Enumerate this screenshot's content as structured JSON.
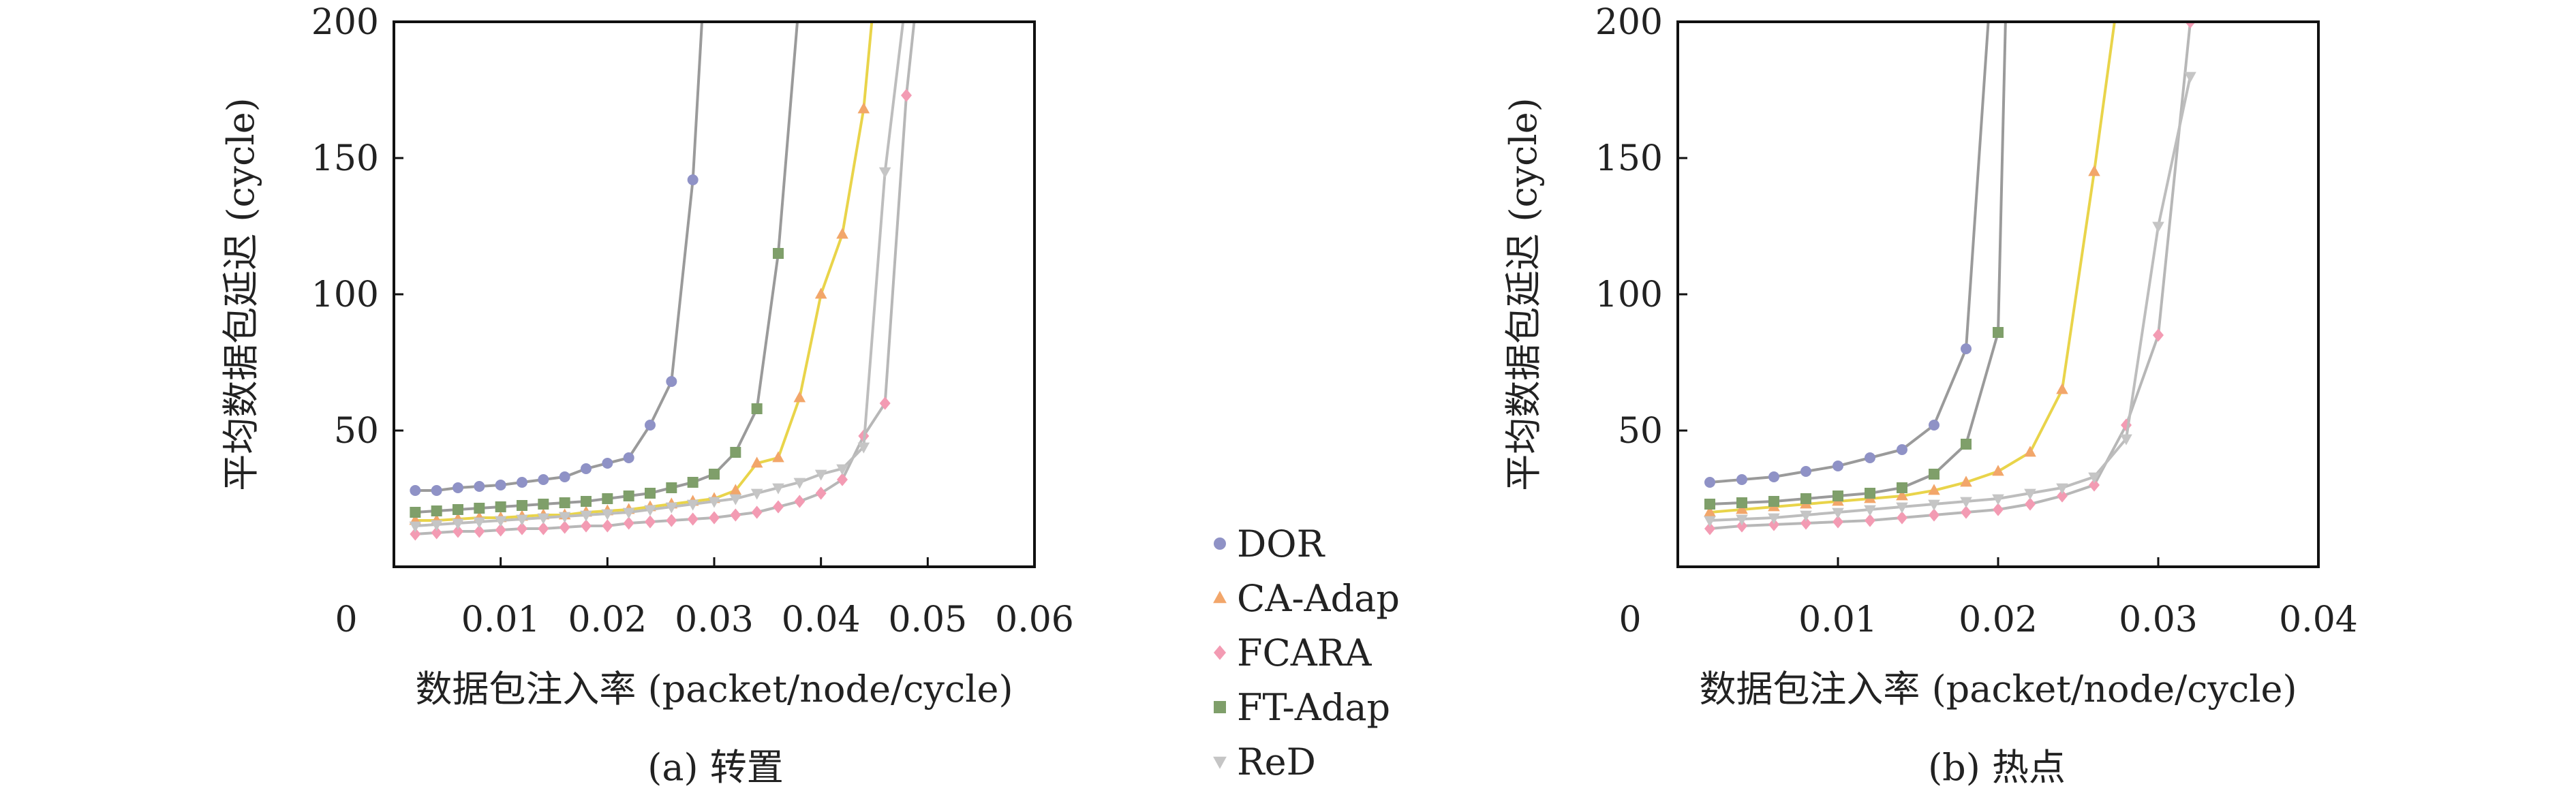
{
  "chart_data": [
    {
      "type": "line",
      "title": "(a) 转置",
      "xlabel": "数据包注入率 (packet/node/cycle)",
      "ylabel": "平均数据包延迟 (cycle)",
      "xlim": [
        0,
        0.06
      ],
      "ylim": [
        0,
        200
      ],
      "xticks": [
        0,
        0.01,
        0.02,
        0.03,
        0.04,
        0.05,
        0.06
      ],
      "xtick_labels": [
        "0",
        "0.01",
        "0.02",
        "0.03",
        "0.04",
        "0.05",
        "0.06"
      ],
      "yticks": [
        50,
        100,
        150,
        200
      ],
      "ytick_labels": [
        "50",
        "100",
        "150",
        "200"
      ],
      "series": [
        {
          "name": "DOR",
          "x": [
            0.002,
            0.004,
            0.006,
            0.008,
            0.01,
            0.012,
            0.014,
            0.016,
            0.018,
            0.02,
            0.022,
            0.024,
            0.026,
            0.028,
            0.029
          ],
          "y": [
            28,
            28,
            29,
            29.5,
            30,
            31,
            32,
            33,
            36,
            38,
            40,
            52,
            68,
            142,
            210
          ]
        },
        {
          "name": "CA-Adap",
          "x": [
            0.002,
            0.004,
            0.006,
            0.008,
            0.01,
            0.012,
            0.014,
            0.016,
            0.018,
            0.02,
            0.022,
            0.024,
            0.026,
            0.028,
            0.03,
            0.032,
            0.034,
            0.036,
            0.038,
            0.04,
            0.042,
            0.044,
            0.045
          ],
          "y": [
            17,
            17,
            17.5,
            18,
            18,
            18.5,
            19,
            19,
            20,
            20.5,
            21,
            22,
            23,
            24,
            25,
            28,
            38,
            40,
            62,
            100,
            122,
            168,
            210
          ]
        },
        {
          "name": "FCARA",
          "x": [
            0.002,
            0.004,
            0.006,
            0.008,
            0.01,
            0.012,
            0.014,
            0.016,
            0.018,
            0.02,
            0.022,
            0.024,
            0.026,
            0.028,
            0.03,
            0.032,
            0.034,
            0.036,
            0.038,
            0.04,
            0.042,
            0.044,
            0.046,
            0.048,
            0.049
          ],
          "y": [
            12,
            12.5,
            13,
            13,
            13.5,
            14,
            14,
            14.5,
            15,
            15,
            16,
            16.5,
            17,
            17.5,
            18,
            19,
            20,
            22,
            24,
            27,
            32,
            48,
            60,
            173,
            210
          ]
        },
        {
          "name": "FT-Adap",
          "x": [
            0.002,
            0.004,
            0.006,
            0.008,
            0.01,
            0.012,
            0.014,
            0.016,
            0.018,
            0.02,
            0.022,
            0.024,
            0.026,
            0.028,
            0.03,
            0.032,
            0.034,
            0.036,
            0.038
          ],
          "y": [
            20,
            20.5,
            21,
            21.5,
            22,
            22.5,
            23,
            23.5,
            24,
            25,
            26,
            27,
            29,
            31,
            34,
            42,
            58,
            115,
            210
          ]
        },
        {
          "name": "ReD",
          "x": [
            0.002,
            0.004,
            0.006,
            0.008,
            0.01,
            0.012,
            0.014,
            0.016,
            0.018,
            0.02,
            0.022,
            0.024,
            0.026,
            0.028,
            0.03,
            0.032,
            0.034,
            0.036,
            0.038,
            0.04,
            0.042,
            0.044,
            0.046,
            0.048
          ],
          "y": [
            15,
            15.5,
            16,
            16.5,
            17,
            17.5,
            18,
            18.5,
            19,
            19.5,
            20,
            21,
            22,
            23,
            24,
            25,
            27,
            29,
            31,
            34,
            36,
            44,
            145,
            210
          ]
        }
      ]
    },
    {
      "type": "line",
      "title": "(b) 热点",
      "xlabel": "数据包注入率 (packet/node/cycle)",
      "ylabel": "平均数据包延迟 (cycle)",
      "xlim": [
        0,
        0.04
      ],
      "ylim": [
        0,
        200
      ],
      "xticks": [
        0,
        0.01,
        0.02,
        0.03,
        0.04
      ],
      "xtick_labels": [
        "0",
        "0.01",
        "0.02",
        "0.03",
        "0.04"
      ],
      "yticks": [
        50,
        100,
        150,
        200
      ],
      "ytick_labels": [
        "50",
        "100",
        "150",
        "200"
      ],
      "series": [
        {
          "name": "DOR",
          "x": [
            0.002,
            0.004,
            0.006,
            0.008,
            0.01,
            0.012,
            0.014,
            0.016,
            0.018,
            0.0195
          ],
          "y": [
            31,
            32,
            33,
            35,
            37,
            40,
            43,
            52,
            80,
            210
          ]
        },
        {
          "name": "CA-Adap",
          "x": [
            0.002,
            0.004,
            0.006,
            0.008,
            0.01,
            0.012,
            0.014,
            0.016,
            0.018,
            0.02,
            0.022,
            0.024,
            0.026,
            0.0275
          ],
          "y": [
            20,
            21,
            22,
            23,
            24,
            25,
            26,
            28,
            31,
            35,
            42,
            65,
            145,
            210
          ]
        },
        {
          "name": "FCARA",
          "x": [
            0.002,
            0.004,
            0.006,
            0.008,
            0.01,
            0.012,
            0.014,
            0.016,
            0.018,
            0.02,
            0.022,
            0.024,
            0.026,
            0.028,
            0.03,
            0.032
          ],
          "y": [
            14,
            15,
            15.5,
            16,
            16.5,
            17,
            18,
            19,
            20,
            21,
            23,
            26,
            30,
            52,
            85,
            200
          ]
        },
        {
          "name": "FT-Adap",
          "x": [
            0.002,
            0.004,
            0.006,
            0.008,
            0.01,
            0.012,
            0.014,
            0.016,
            0.018,
            0.02,
            0.0205
          ],
          "y": [
            23,
            23.5,
            24,
            25,
            26,
            27,
            29,
            34,
            45,
            86,
            210
          ]
        },
        {
          "name": "ReD",
          "x": [
            0.002,
            0.004,
            0.006,
            0.008,
            0.01,
            0.012,
            0.014,
            0.016,
            0.018,
            0.02,
            0.022,
            0.024,
            0.026,
            0.028,
            0.03,
            0.032
          ],
          "y": [
            17,
            17.5,
            18,
            19,
            20,
            21,
            22,
            23,
            24,
            25,
            27,
            29,
            33,
            47,
            125,
            180
          ]
        }
      ]
    }
  ],
  "legend": {
    "placement": "bottom-center",
    "entries": [
      {
        "name": "DOR",
        "color": "#9a9a9a",
        "marker_color": "#8f92c6",
        "marker": "circle"
      },
      {
        "name": "CA-Adap",
        "color": "#e9d44a",
        "marker_color": "#f2a66a",
        "marker": "triangle"
      },
      {
        "name": "FCARA",
        "color": "#b7b7b7",
        "marker_color": "#f39bb3",
        "marker": "diamond"
      },
      {
        "name": "FT-Adap",
        "color": "#9a9a9a",
        "marker_color": "#7f9f6a",
        "marker": "square"
      },
      {
        "name": "ReD",
        "color": "#bdbdbd",
        "marker_color": "#c5c5c5",
        "marker": "triangle-down"
      }
    ]
  }
}
